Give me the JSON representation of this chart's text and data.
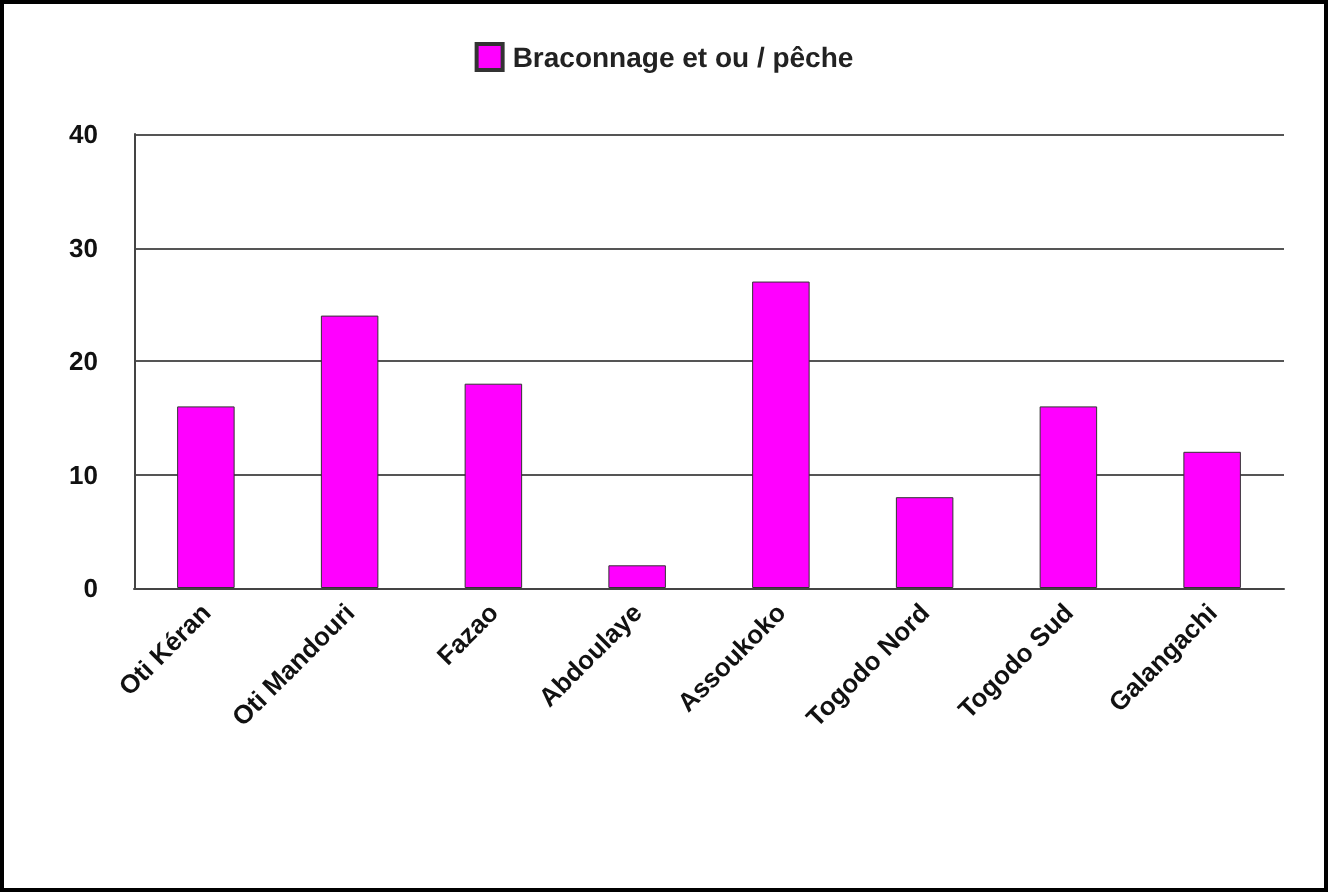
{
  "chart_data": {
    "type": "bar",
    "categories": [
      "Oti Kéran",
      "Oti Mandouri",
      "Fazao",
      "Abdoulaye",
      "Assoukoko",
      "Togodo Nord",
      "Togodo Sud",
      "Galangachi"
    ],
    "series": [
      {
        "name": "Braconnage et ou / pêche",
        "color": "#ff00ff",
        "values": [
          16,
          24,
          18,
          2,
          27,
          8,
          16,
          12
        ]
      }
    ],
    "ylim": [
      0,
      40
    ],
    "yticks": [
      0,
      10,
      20,
      30,
      40
    ],
    "grid": "y",
    "legend": "top"
  }
}
